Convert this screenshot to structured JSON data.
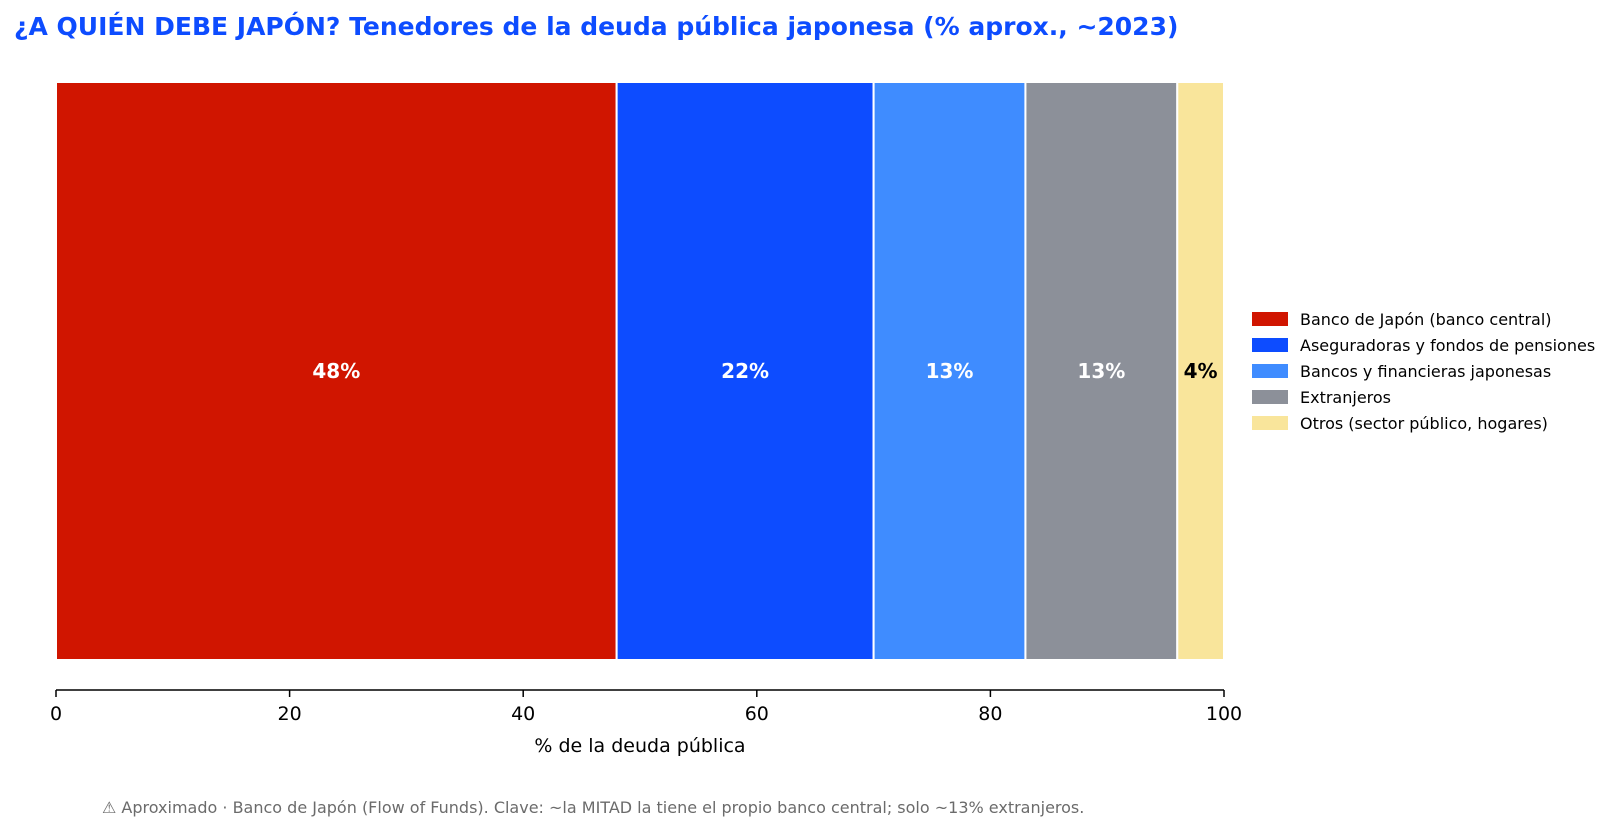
{
  "chart_data": {
    "type": "bar",
    "orientation": "horizontal-stacked",
    "title": "¿A QUIÉN DEBE JAPÓN? Tenedores de la deuda pública japonesa (% aprox., ~2023)",
    "xlabel": "% de la deuda pública",
    "ylabel": "",
    "xlim": [
      0,
      100
    ],
    "xticks": [
      0,
      20,
      40,
      60,
      80,
      100
    ],
    "grid": false,
    "legend_position": "right",
    "series": [
      {
        "name": "Banco de Japón (banco central)",
        "value": 48,
        "label": "48%",
        "color": "#d01500",
        "label_color": "#ffffff"
      },
      {
        "name": "Aseguradoras y fondos de pensiones",
        "value": 22,
        "label": "22%",
        "color": "#0d4cff",
        "label_color": "#ffffff"
      },
      {
        "name": "Bancos y financieras japonesas",
        "value": 13,
        "label": "13%",
        "color": "#3f8cff",
        "label_color": "#ffffff"
      },
      {
        "name": "Extranjeros",
        "value": 13,
        "label": "13%",
        "color": "#8c9099",
        "label_color": "#ffffff"
      },
      {
        "name": "Otros (sector público, hogares)",
        "value": 4,
        "label": "4%",
        "color": "#f9e59b",
        "label_color": "#000000"
      }
    ]
  },
  "footnote": "⚠ Aproximado · Banco de Japón (Flow of Funds). Clave: ~la MITAD la tiene el propio banco central; solo ~13% extranjeros."
}
